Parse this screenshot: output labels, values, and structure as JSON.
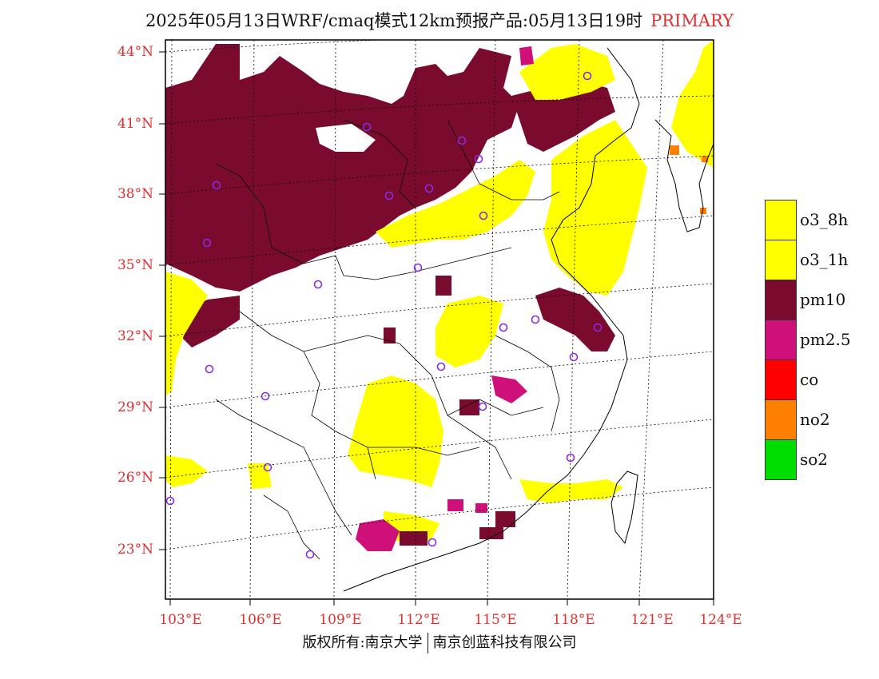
{
  "title": {
    "text": "2025年05月13日WRF/cmaq模式12km预报产品:05月13日19时",
    "tag": "PRIMARY"
  },
  "axes": {
    "lat_labels": [
      "44°N",
      "41°N",
      "38°N",
      "35°N",
      "32°N",
      "29°N",
      "26°N",
      "23°N"
    ],
    "lon_labels": [
      "103°E",
      "106°E",
      "109°E",
      "112°E",
      "115°E",
      "118°E",
      "121°E",
      "124°E"
    ]
  },
  "legend": {
    "items": [
      {
        "label": "o3_8h",
        "color": "#ffff00"
      },
      {
        "label": "o3_1h",
        "color": "#ffff00"
      },
      {
        "label": "pm10",
        "color": "#7a0a2e"
      },
      {
        "label": "pm2.5",
        "color": "#d0107a"
      },
      {
        "label": "co",
        "color": "#ff0000"
      },
      {
        "label": "no2",
        "color": "#ff7f00"
      },
      {
        "label": "so2",
        "color": "#00dd00"
      }
    ]
  },
  "footer": {
    "left": "版权所有:南京大学",
    "right": "南京创蓝科技有限公司"
  },
  "colors": {
    "o3": "#ffff00",
    "pm10": "#7a0a2e",
    "pm25": "#d0107a",
    "no2": "#ff7f00",
    "station_marker": "#8a2be2",
    "label_red": "#e03030"
  }
}
